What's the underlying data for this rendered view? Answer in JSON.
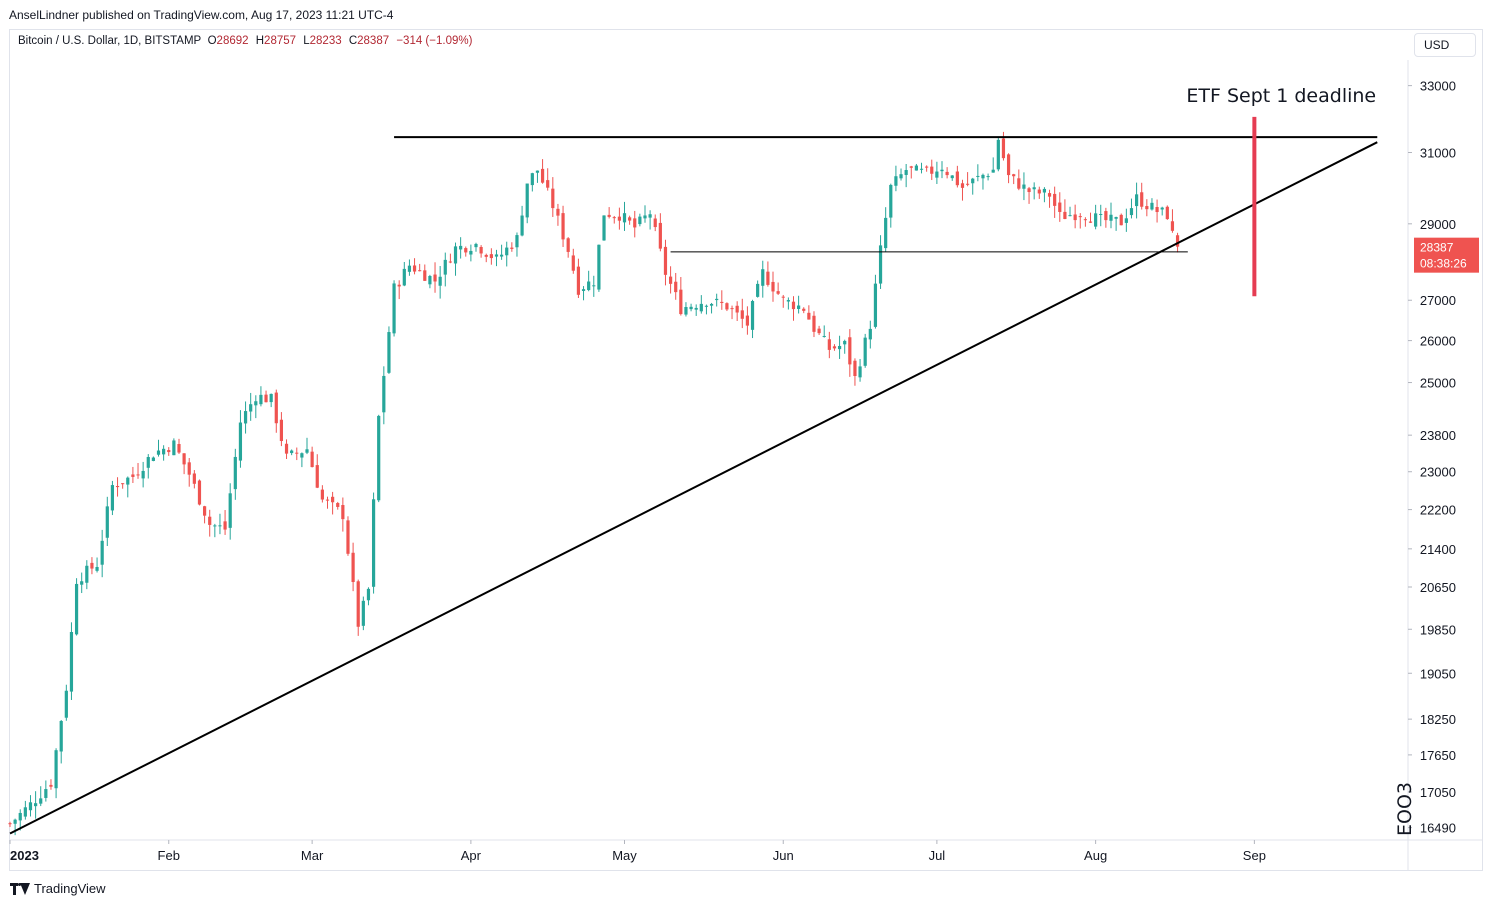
{
  "header": {
    "publisher": "AnselLindner published on TradingView.com, Aug 17, 2023 11:21 UTC-4"
  },
  "legend": {
    "symbol": "Bitcoin / U.S. Dollar, 1D, BITSTAMP",
    "o_label": "O",
    "o": "28692",
    "h_label": "H",
    "h": "28757",
    "l_label": "L",
    "l": "28233",
    "c_label": "C",
    "c": "28387",
    "change": "−314 (−1.09%)"
  },
  "currency_button": "USD",
  "footer": {
    "brand": "TradingView"
  },
  "colors": {
    "up": "#26a69a",
    "down": "#ef5350",
    "marker": "#e53c52",
    "line": "#000000"
  },
  "chart_data": {
    "type": "candlestick",
    "scale": "log",
    "ylim": [
      16300,
      33800
    ],
    "y_ticks": [
      "33000",
      "31000",
      "29000",
      "27000",
      "26000",
      "25000",
      "23800",
      "23000",
      "22200",
      "21400",
      "20650",
      "19850",
      "19050",
      "18250",
      "17650",
      "17050",
      "16490"
    ],
    "x_ticks": [
      {
        "label": "2023",
        "date": "2023-01-01"
      },
      {
        "label": "Feb",
        "date": "2023-02-01"
      },
      {
        "label": "Mar",
        "date": "2023-03-01"
      },
      {
        "label": "Apr",
        "date": "2023-04-01"
      },
      {
        "label": "May",
        "date": "2023-05-01"
      },
      {
        "label": "Jun",
        "date": "2023-06-01"
      },
      {
        "label": "Jul",
        "date": "2023-07-01"
      },
      {
        "label": "Aug",
        "date": "2023-08-01"
      },
      {
        "label": "Sep",
        "date": "2023-09-01"
      }
    ],
    "xlim": [
      "2023-01-01",
      "2023-10-01"
    ],
    "price_tag": {
      "price": "28387",
      "countdown": "08:38:26"
    },
    "annotations": {
      "deadline_text": "ETF Sept 1 deadline",
      "deadline_date": "2023-09-01",
      "deadline_range": [
        27100,
        32050
      ],
      "resistance": {
        "from": "2023-03-17",
        "to": "2023-09-25",
        "price": 31450
      },
      "support": {
        "from": "2023-05-10",
        "to": "2023-08-19",
        "price": 28250
      },
      "trendline": {
        "from": [
          "2023-01-01",
          16400
        ],
        "to": [
          "2023-09-25",
          31300
        ]
      }
    },
    "indicator_label": "EOO3",
    "anchors": [
      [
        "2023-01-01",
        16550
      ],
      [
        "2023-01-05",
        16850
      ],
      [
        "2023-01-09",
        17200
      ],
      [
        "2023-01-12",
        18800
      ],
      [
        "2023-01-14",
        20800
      ],
      [
        "2023-01-18",
        21100
      ],
      [
        "2023-01-21",
        22700
      ],
      [
        "2023-01-25",
        22900
      ],
      [
        "2023-01-29",
        23400
      ],
      [
        "2023-02-02",
        23600
      ],
      [
        "2023-02-05",
        22950
      ],
      [
        "2023-02-09",
        21900
      ],
      [
        "2023-02-12",
        21800
      ],
      [
        "2023-02-15",
        24100
      ],
      [
        "2023-02-18",
        24700
      ],
      [
        "2023-02-21",
        24600
      ],
      [
        "2023-02-24",
        23300
      ],
      [
        "2023-02-28",
        23500
      ],
      [
        "2023-03-03",
        22400
      ],
      [
        "2023-03-07",
        22100
      ],
      [
        "2023-03-10",
        19950
      ],
      [
        "2023-03-12",
        20600
      ],
      [
        "2023-03-14",
        24200
      ],
      [
        "2023-03-17",
        27300
      ],
      [
        "2023-03-20",
        27900
      ],
      [
        "2023-03-25",
        27500
      ],
      [
        "2023-03-29",
        28350
      ],
      [
        "2023-04-02",
        28450
      ],
      [
        "2023-04-06",
        28050
      ],
      [
        "2023-04-10",
        28600
      ],
      [
        "2023-04-12",
        30150
      ],
      [
        "2023-04-14",
        30500
      ],
      [
        "2023-04-17",
        29500
      ],
      [
        "2023-04-20",
        28300
      ],
      [
        "2023-04-22",
        27300
      ],
      [
        "2023-04-25",
        27500
      ],
      [
        "2023-04-27",
        29300
      ],
      [
        "2023-04-30",
        29250
      ],
      [
        "2023-05-03",
        28900
      ],
      [
        "2023-05-06",
        29300
      ],
      [
        "2023-05-09",
        27700
      ],
      [
        "2023-05-12",
        26800
      ],
      [
        "2023-05-17",
        27000
      ],
      [
        "2023-05-21",
        26850
      ],
      [
        "2023-05-25",
        26400
      ],
      [
        "2023-05-28",
        27700
      ],
      [
        "2023-06-01",
        27000
      ],
      [
        "2023-06-05",
        26800
      ],
      [
        "2023-06-07",
        26300
      ],
      [
        "2023-06-10",
        25800
      ],
      [
        "2023-06-13",
        25900
      ],
      [
        "2023-06-15",
        25100
      ],
      [
        "2023-06-18",
        26400
      ],
      [
        "2023-06-20",
        28300
      ],
      [
        "2023-06-22",
        30000
      ],
      [
        "2023-06-25",
        30500
      ],
      [
        "2023-06-29",
        30400
      ],
      [
        "2023-07-02",
        30600
      ],
      [
        "2023-07-06",
        30000
      ],
      [
        "2023-07-10",
        30350
      ],
      [
        "2023-07-12",
        30500
      ],
      [
        "2023-07-13",
        31400
      ],
      [
        "2023-07-15",
        30300
      ],
      [
        "2023-07-19",
        29900
      ],
      [
        "2023-07-23",
        29800
      ],
      [
        "2023-07-25",
        29200
      ],
      [
        "2023-07-29",
        29300
      ],
      [
        "2023-08-02",
        29100
      ],
      [
        "2023-08-06",
        29050
      ],
      [
        "2023-08-09",
        29700
      ],
      [
        "2023-08-13",
        29350
      ],
      [
        "2023-08-15",
        29250
      ],
      [
        "2023-08-16",
        28700
      ],
      [
        "2023-08-17",
        28387
      ]
    ]
  }
}
